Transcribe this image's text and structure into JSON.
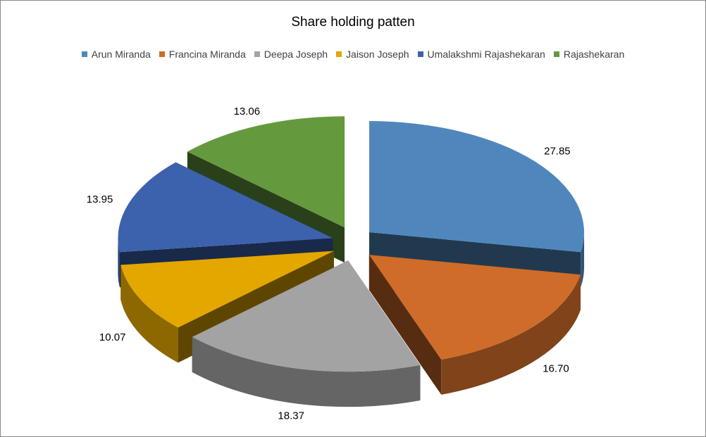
{
  "chart_data": {
    "type": "pie",
    "title": "Share holding patten",
    "legend_position": "top",
    "exploded": true,
    "three_d": true,
    "slices": [
      {
        "name": "Arun Miranda",
        "value": 27.85,
        "label": "27.85",
        "color": "#4f87bd"
      },
      {
        "name": "Francina Miranda",
        "value": 16.7,
        "label": "16.70",
        "color": "#cf6c2a"
      },
      {
        "name": "Deepa Joseph",
        "value": 18.37,
        "label": "18.37",
        "color": "#a3a3a3"
      },
      {
        "name": "Jaison Joseph",
        "value": 10.07,
        "label": "10.07",
        "color": "#e3a700"
      },
      {
        "name": "Umalakshmi Rajashekaran",
        "value": 13.95,
        "label": "13.95",
        "color": "#3c62ad"
      },
      {
        "name": "Rajashekaran",
        "value": 13.06,
        "label": "13.06",
        "color": "#65993d"
      }
    ]
  }
}
